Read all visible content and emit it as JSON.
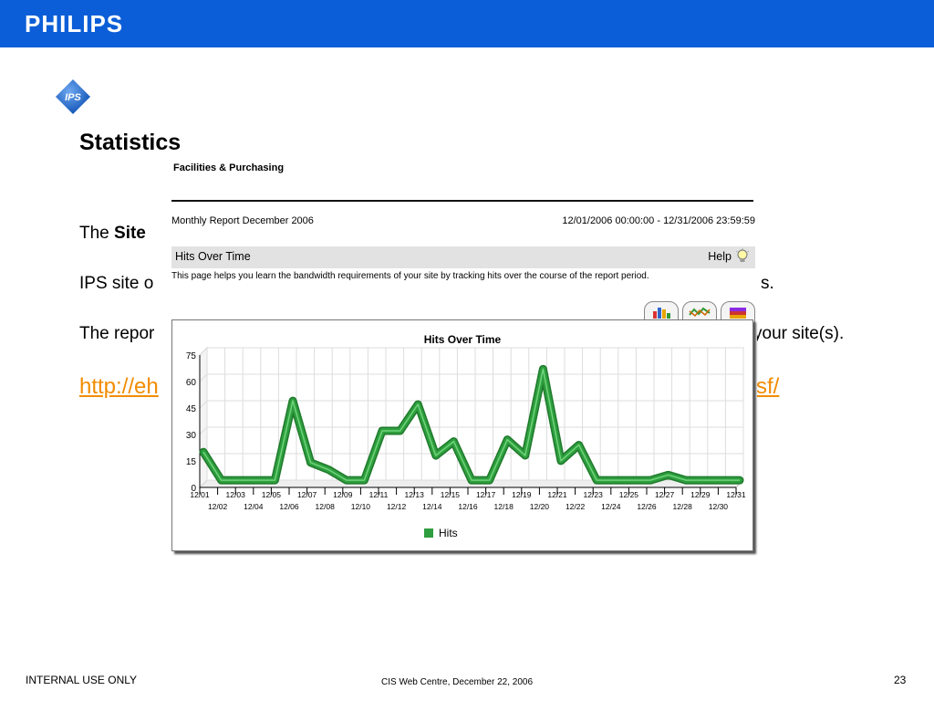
{
  "header": {
    "brand": "PHILIPS"
  },
  "slide": {
    "title": "Statistics",
    "line1_prefix": "The ",
    "line1_bold": "Site",
    "line2": "IPS site o",
    "line2_tail": "s.",
    "line3": "The repor",
    "line3_tail": "your site(s).",
    "link_start": "http://eh",
    "link_end": "sf/"
  },
  "screenshot": {
    "org": "Facilities & Purchasing",
    "report_name": "Monthly Report December 2006",
    "report_range": "12/01/2006 00:00:00 - 12/31/2006 23:59:59",
    "section_title": "Hits Over Time",
    "help_label": "Help",
    "description": "This page helps you learn the bandwidth requirements of your site by tracking hits over the course of the report period."
  },
  "chart_data": {
    "type": "line",
    "title": "Hits Over Time",
    "categories": [
      "12/01",
      "12/02",
      "12/03",
      "12/04",
      "12/05",
      "12/06",
      "12/07",
      "12/08",
      "12/09",
      "12/10",
      "12/11",
      "12/12",
      "12/13",
      "12/14",
      "12/15",
      "12/16",
      "12/17",
      "12/18",
      "12/19",
      "12/20",
      "12/21",
      "12/22",
      "12/23",
      "12/24",
      "12/25",
      "12/26",
      "12/27",
      "12/28",
      "12/29",
      "12/30",
      "12/31"
    ],
    "series": [
      {
        "name": "Hits",
        "values": [
          18,
          2,
          2,
          2,
          2,
          47,
          12,
          8,
          2,
          2,
          30,
          30,
          45,
          16,
          24,
          2,
          2,
          25,
          16,
          65,
          13,
          22,
          2,
          2,
          2,
          2,
          5,
          2,
          2,
          2,
          2
        ]
      }
    ],
    "yticks": [
      0,
      15,
      30,
      45,
      60,
      75
    ],
    "ylim": [
      0,
      75
    ],
    "legend": "bottom",
    "grid": true,
    "color": "#2e9e3e"
  },
  "footer": {
    "left": "INTERNAL USE ONLY",
    "center": "CIS Web Centre, December 22, 2006",
    "page": "23"
  }
}
